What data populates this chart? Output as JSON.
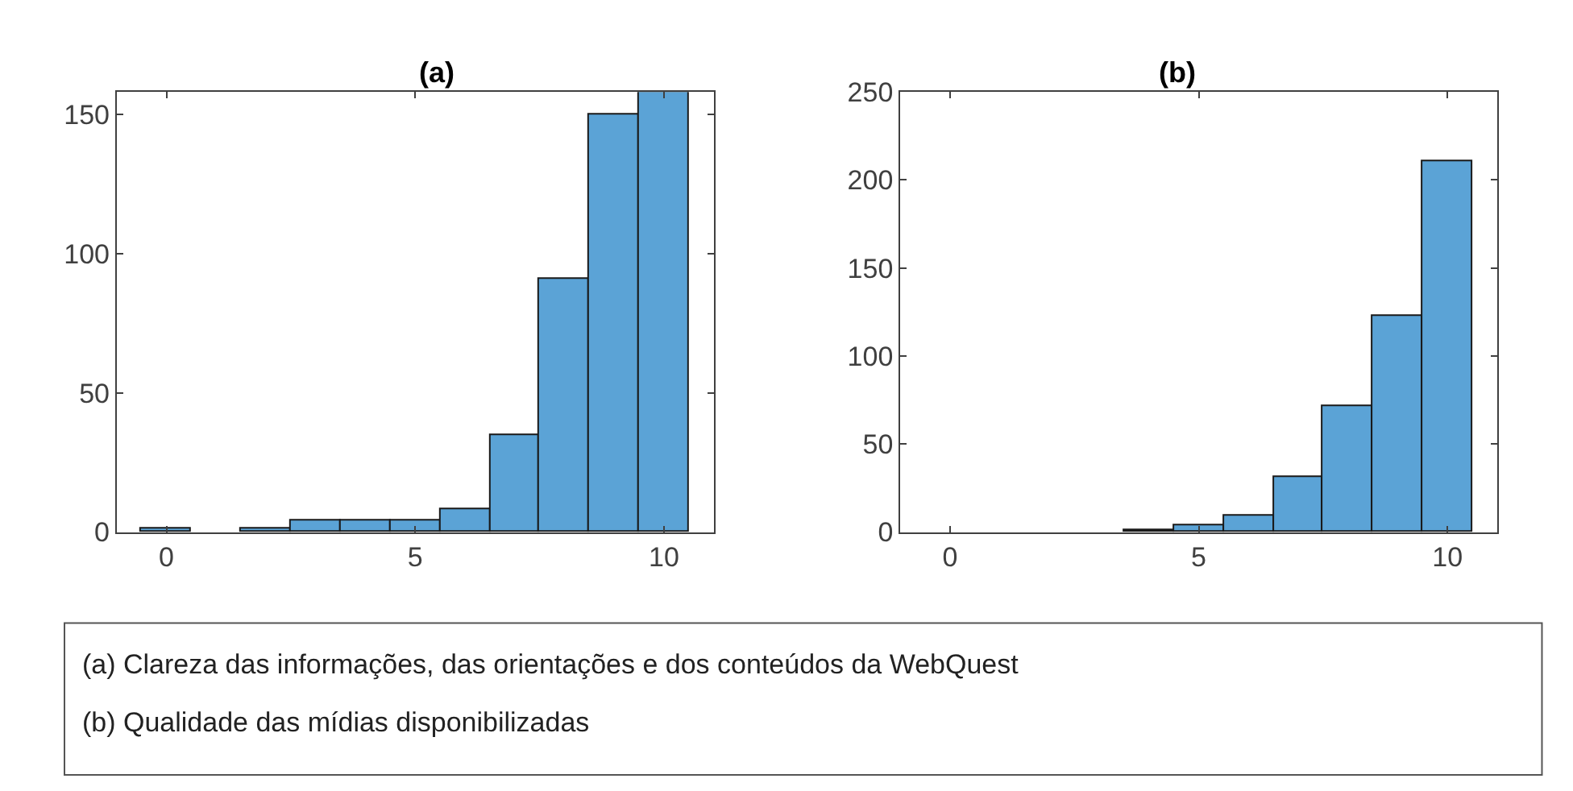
{
  "chart_data": [
    {
      "type": "histogram",
      "title": "(a)",
      "bins": [
        -0.5,
        0.5,
        1.5,
        2.5,
        3.5,
        4.5,
        5.5,
        6.5,
        7.5,
        8.5,
        9.5,
        10.5
      ],
      "values": [
        1,
        0,
        1,
        4,
        4,
        4,
        8,
        35,
        91,
        150,
        158
      ],
      "color": "#5ba3d6",
      "xlim": [
        -1,
        11
      ],
      "xticks": [
        0,
        5,
        10
      ],
      "ylim": [
        0,
        158
      ],
      "yticks": [
        0,
        50,
        100,
        150
      ],
      "annotations": [
        "(a) Clareza das informações, das orientações e dos conteúdos da WebQuest",
        "(b) Qualidade das mídias disponibilizadas"
      ]
    },
    {
      "type": "histogram",
      "title": "(b)",
      "bins": [
        -0.5,
        0.5,
        1.5,
        2.5,
        3.5,
        4.5,
        5.5,
        6.5,
        7.5,
        8.5,
        9.5,
        10.5
      ],
      "values": [
        0,
        0,
        0,
        0,
        1,
        4,
        9,
        31,
        72,
        123,
        211
      ],
      "color": "#5ba3d6",
      "xlim": [
        -1,
        11
      ],
      "xticks": [
        0,
        5,
        10
      ],
      "ylim": [
        0,
        250
      ],
      "yticks": [
        0,
        50,
        100,
        150,
        200,
        250
      ]
    }
  ]
}
